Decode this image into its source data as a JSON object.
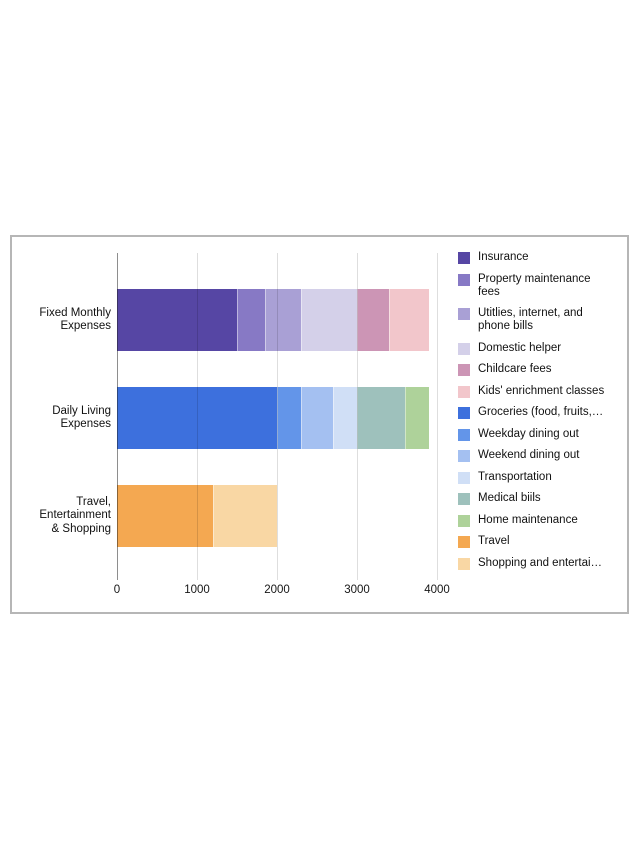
{
  "page": {
    "background": "#ffffff"
  },
  "panel": {
    "border_color": "#b6b6b6",
    "background": "#ffffff"
  },
  "chart_data": {
    "type": "bar",
    "orientation": "horizontal",
    "stacked": true,
    "title": "",
    "xlabel": "",
    "ylabel": "",
    "categories": [
      "Fixed Monthly Expenses",
      "Daily Living Expenses",
      "Travel, Entertainment & Shopping"
    ],
    "category_label_lines": [
      [
        "Fixed Monthly",
        "Expenses"
      ],
      [
        "Daily Living",
        "Expenses"
      ],
      [
        "Travel,",
        "Entertainment",
        "& Shopping"
      ]
    ],
    "xlim": [
      0,
      4000
    ],
    "xticks": [
      0,
      1000,
      2000,
      3000,
      4000
    ],
    "grid": true,
    "legend_position": "right",
    "series": [
      {
        "name": "Insurance",
        "color": "#5646a4",
        "values": [
          1500,
          0,
          0
        ],
        "legend_lines": [
          "Insurance"
        ]
      },
      {
        "name": "Property maintenance fees",
        "color": "#8779c5",
        "values": [
          350,
          0,
          0
        ],
        "legend_lines": [
          "Property maintenance",
          "fees"
        ]
      },
      {
        "name": "Utitlies, internet, and phone bills",
        "color": "#a9a0d5",
        "values": [
          450,
          0,
          0
        ],
        "legend_lines": [
          "Utitlies, internet, and",
          "phone bills"
        ]
      },
      {
        "name": "Domestic helper",
        "color": "#d4d0e9",
        "values": [
          700,
          0,
          0
        ],
        "legend_lines": [
          "Domestic helper"
        ]
      },
      {
        "name": "Childcare fees",
        "color": "#cc95b5",
        "values": [
          400,
          0,
          0
        ],
        "legend_lines": [
          "Childcare fees"
        ]
      },
      {
        "name": "Kids' enrichment classes",
        "color": "#f2c6cb",
        "values": [
          500,
          0,
          0
        ],
        "legend_lines": [
          "Kids' enrichment classes"
        ]
      },
      {
        "name": "Groceries (food, fruits,…",
        "color": "#3d70dd",
        "values": [
          0,
          2000,
          0
        ],
        "legend_lines": [
          "Groceries (food, fruits,…"
        ]
      },
      {
        "name": "Weekday dining out",
        "color": "#6395e9",
        "values": [
          0,
          300,
          0
        ],
        "legend_lines": [
          "Weekday dining out"
        ]
      },
      {
        "name": "Weekend dining out",
        "color": "#a4c0f1",
        "values": [
          0,
          400,
          0
        ],
        "legend_lines": [
          "Weekend dining out"
        ]
      },
      {
        "name": "Transportation",
        "color": "#d0dff6",
        "values": [
          0,
          300,
          0
        ],
        "legend_lines": [
          "Transportation"
        ]
      },
      {
        "name": "Medical biils",
        "color": "#9ec1bc",
        "values": [
          0,
          600,
          0
        ],
        "legend_lines": [
          "Medical biils"
        ]
      },
      {
        "name": "Home maintenance",
        "color": "#aed29a",
        "values": [
          0,
          300,
          0
        ],
        "legend_lines": [
          "Home maintenance"
        ]
      },
      {
        "name": "Travel",
        "color": "#f4a851",
        "values": [
          0,
          0,
          1200
        ],
        "legend_lines": [
          "Travel"
        ]
      },
      {
        "name": "Shopping and entertai…",
        "color": "#f9d7a4",
        "values": [
          0,
          0,
          800
        ],
        "legend_lines": [
          "Shopping and entertai…"
        ]
      }
    ]
  }
}
